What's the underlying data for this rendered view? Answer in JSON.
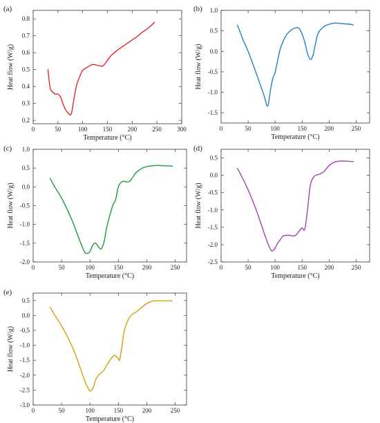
{
  "chart_data": [
    {
      "type": "line",
      "panel_label": "(a)",
      "xlabel": "Temperature (°C)",
      "ylabel": "Heat flow (W/g)",
      "xlim": [
        0,
        300
      ],
      "ylim": [
        0.18,
        0.85
      ],
      "xticks": [
        0,
        50,
        100,
        150,
        200,
        250,
        300
      ],
      "yticks": [
        0.2,
        0.3,
        0.4,
        0.5,
        0.6,
        0.7,
        0.8
      ],
      "grid": false,
      "series": [
        {
          "color": "#e8262b",
          "x": [
            30,
            32,
            35,
            40,
            45,
            50,
            55,
            60,
            65,
            70,
            75,
            78,
            82,
            88,
            95,
            100,
            110,
            120,
            130,
            140,
            145,
            150,
            155,
            160,
            170,
            180,
            190,
            200,
            210,
            220,
            230,
            240,
            245
          ],
          "y": [
            0.5,
            0.44,
            0.385,
            0.365,
            0.355,
            0.355,
            0.34,
            0.3,
            0.265,
            0.245,
            0.232,
            0.25,
            0.32,
            0.41,
            0.465,
            0.495,
            0.515,
            0.53,
            0.525,
            0.52,
            0.535,
            0.555,
            0.575,
            0.59,
            0.615,
            0.635,
            0.655,
            0.675,
            0.695,
            0.72,
            0.74,
            0.765,
            0.78
          ]
        }
      ]
    },
    {
      "type": "line",
      "panel_label": "(b)",
      "xlabel": "Temperature (°C)",
      "ylabel": "Heat flow (W/g)",
      "xlim": [
        0,
        275
      ],
      "ylim": [
        -1.75,
        1.0
      ],
      "xticks": [
        0,
        50,
        100,
        150,
        200,
        250
      ],
      "yticks": [
        1.0,
        0.5,
        0.0,
        -0.5,
        -1.0,
        -1.5
      ],
      "grid": false,
      "series": [
        {
          "color": "#1f83c2",
          "x": [
            30,
            35,
            40,
            50,
            60,
            70,
            80,
            85,
            88,
            92,
            96,
            100,
            105,
            110,
            120,
            130,
            140,
            145,
            150,
            155,
            160,
            165,
            170,
            175,
            180,
            190,
            200,
            210,
            220,
            230,
            240,
            245
          ],
          "y": [
            0.64,
            0.48,
            0.3,
            0.0,
            -0.35,
            -0.72,
            -1.1,
            -1.33,
            -1.25,
            -0.9,
            -0.65,
            -0.52,
            -0.2,
            0.08,
            0.38,
            0.52,
            0.58,
            0.55,
            0.42,
            0.22,
            -0.05,
            -0.2,
            -0.1,
            0.2,
            0.45,
            0.6,
            0.66,
            0.69,
            0.68,
            0.67,
            0.66,
            0.64
          ]
        }
      ]
    },
    {
      "type": "line",
      "panel_label": "(c)",
      "xlabel": "Temperature (°C)",
      "ylabel": "Heat flow (W/g)",
      "xlim": [
        0,
        270
      ],
      "ylim": [
        -2.0,
        1.0
      ],
      "xticks": [
        0,
        50,
        100,
        150,
        200,
        250
      ],
      "yticks": [
        1.0,
        0.5,
        0.0,
        -0.5,
        -1.0,
        -1.5,
        -2.0
      ],
      "grid": false,
      "series": [
        {
          "color": "#1d9c3e",
          "x": [
            30,
            35,
            40,
            50,
            60,
            70,
            80,
            90,
            95,
            100,
            105,
            110,
            115,
            120,
            125,
            130,
            140,
            145,
            150,
            155,
            160,
            165,
            170,
            175,
            180,
            190,
            200,
            210,
            220,
            230,
            240,
            245
          ],
          "y": [
            0.22,
            0.08,
            -0.05,
            -0.3,
            -0.6,
            -0.95,
            -1.35,
            -1.72,
            -1.77,
            -1.72,
            -1.55,
            -1.5,
            -1.6,
            -1.65,
            -1.45,
            -1.05,
            -0.5,
            -0.35,
            0.0,
            0.12,
            0.15,
            0.13,
            0.15,
            0.25,
            0.36,
            0.48,
            0.54,
            0.56,
            0.57,
            0.56,
            0.56,
            0.55
          ]
        }
      ]
    },
    {
      "type": "line",
      "panel_label": "(d)",
      "xlabel": "Temperature (°C)",
      "ylabel": "Heat flow (W/g)",
      "xlim": [
        0,
        275
      ],
      "ylim": [
        -2.5,
        0.75
      ],
      "xticks": [
        0,
        50,
        100,
        150,
        200,
        250
      ],
      "yticks": [
        0.5,
        0.0,
        -0.5,
        -1.0,
        -1.5,
        -2.0,
        -2.5
      ],
      "grid": false,
      "series": [
        {
          "color": "#a441b3",
          "x": [
            30,
            33,
            37,
            45,
            55,
            65,
            75,
            85,
            92,
            95,
            100,
            105,
            110,
            115,
            125,
            135,
            140,
            145,
            150,
            155,
            160,
            165,
            170,
            175,
            180,
            190,
            200,
            210,
            220,
            230,
            240,
            245
          ],
          "y": [
            0.2,
            0.12,
            0.0,
            -0.25,
            -0.6,
            -1.0,
            -1.45,
            -1.9,
            -2.15,
            -2.18,
            -2.1,
            -1.95,
            -1.85,
            -1.75,
            -1.73,
            -1.75,
            -1.7,
            -1.6,
            -1.52,
            -1.55,
            -1.0,
            -0.3,
            -0.08,
            0.0,
            0.02,
            0.1,
            0.28,
            0.38,
            0.41,
            0.41,
            0.4,
            0.39
          ]
        }
      ]
    },
    {
      "type": "line",
      "panel_label": "(e)",
      "xlabel": "Temperature (°C)",
      "ylabel": "Heat flow (W/g)",
      "xlim": [
        0,
        270
      ],
      "ylim": [
        -3.0,
        0.75
      ],
      "xticks": [
        0,
        50,
        100,
        150,
        200,
        250
      ],
      "yticks": [
        0.5,
        0.0,
        -0.5,
        -1.0,
        -1.5,
        -2.0,
        -2.5,
        -3.0
      ],
      "grid": false,
      "series": [
        {
          "color": "#d4a10a",
          "x": [
            30,
            35,
            40,
            50,
            60,
            70,
            80,
            90,
            98,
            102,
            106,
            110,
            115,
            120,
            125,
            130,
            140,
            145,
            150,
            152,
            155,
            160,
            165,
            170,
            175,
            180,
            190,
            200,
            210,
            220,
            230,
            240,
            245
          ],
          "y": [
            0.27,
            0.1,
            -0.05,
            -0.35,
            -0.7,
            -1.1,
            -1.6,
            -2.15,
            -2.48,
            -2.52,
            -2.4,
            -2.15,
            -2.0,
            -1.92,
            -1.82,
            -1.65,
            -1.38,
            -1.35,
            -1.45,
            -1.5,
            -1.2,
            -0.55,
            -0.25,
            -0.05,
            0.05,
            0.1,
            0.25,
            0.4,
            0.48,
            0.49,
            0.49,
            0.49,
            0.48
          ]
        }
      ]
    }
  ]
}
